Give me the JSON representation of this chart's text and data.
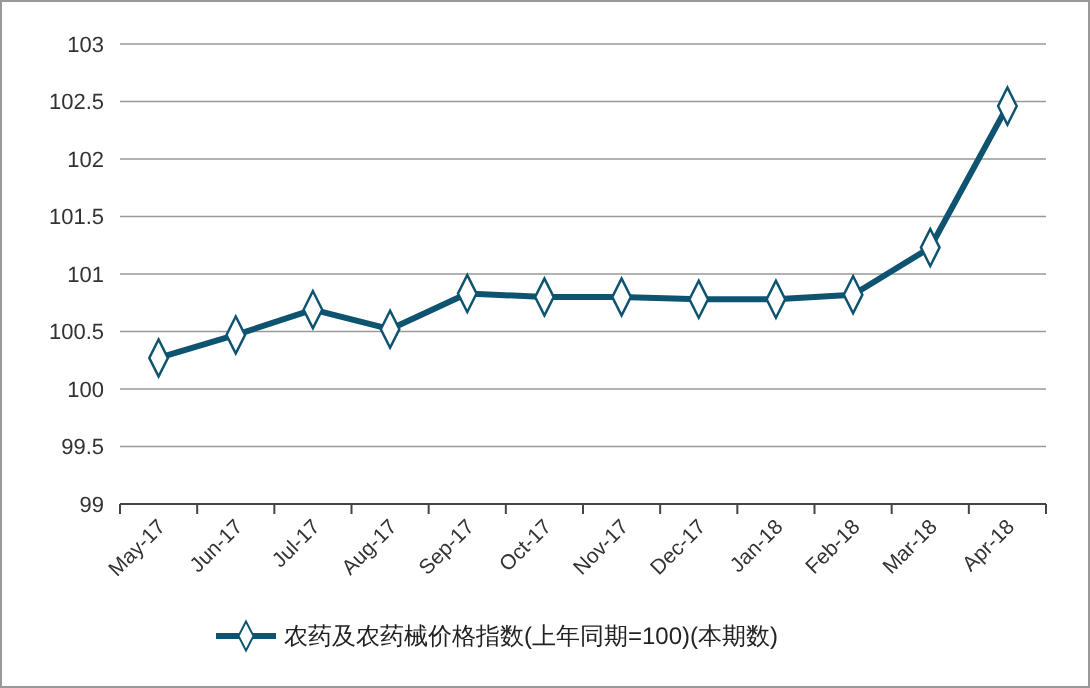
{
  "chart_data": {
    "type": "line",
    "categories": [
      "May-17",
      "Jun-17",
      "Jul-17",
      "Aug-17",
      "Sep-17",
      "Oct-17",
      "Nov-17",
      "Dec-17",
      "Jan-18",
      "Feb-18",
      "Mar-18",
      "Apr-18"
    ],
    "series": [
      {
        "name": "农药及农药械价格指数(上年同期=100)(本期数)",
        "color": "#0e5470",
        "values": [
          100.27,
          100.47,
          100.69,
          100.52,
          100.83,
          100.8,
          100.8,
          100.78,
          100.78,
          100.82,
          101.23,
          102.46
        ]
      }
    ],
    "ylim": [
      99,
      103
    ],
    "yticks": [
      99,
      99.5,
      100,
      100.5,
      101,
      101.5,
      102,
      102.5,
      103
    ],
    "grid": "y",
    "legend": "bottom",
    "marker": "diamond",
    "line_style": "solid"
  }
}
